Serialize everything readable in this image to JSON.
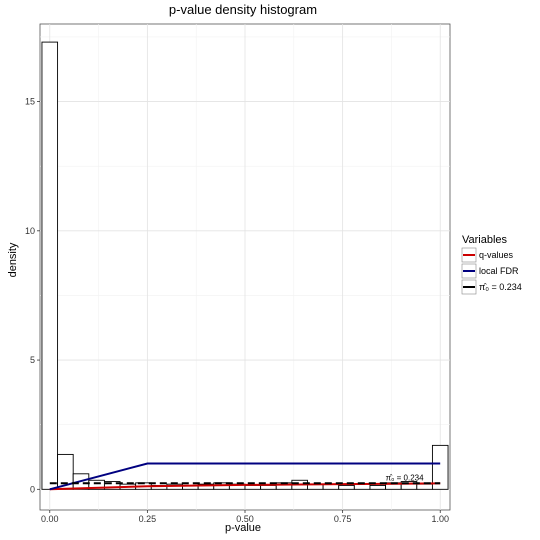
{
  "chart_data": {
    "type": "bar",
    "title": "p-value density histogram",
    "xlabel": "p-value",
    "ylabel": "density",
    "xlim": [
      -0.025,
      1.025
    ],
    "ylim": [
      -0.8,
      18.0
    ],
    "x_ticks": [
      0.0,
      0.25,
      0.5,
      0.75,
      1.0
    ],
    "x_tick_labels": [
      "0.00",
      "0.25",
      "0.50",
      "0.75",
      "1.00"
    ],
    "y_ticks": [
      0,
      5,
      10,
      15
    ],
    "y_tick_labels": [
      "0",
      "5",
      "10",
      "15"
    ],
    "grid": true,
    "legend_position": "right",
    "legend_title": "Variables",
    "histogram": {
      "bin_width": 0.04,
      "bin_starts": [
        -0.02,
        0.02,
        0.06,
        0.1,
        0.14,
        0.18,
        0.22,
        0.26,
        0.3,
        0.34,
        0.38,
        0.42,
        0.46,
        0.5,
        0.54,
        0.58,
        0.62,
        0.66,
        0.7,
        0.74,
        0.78,
        0.82,
        0.86,
        0.9,
        0.94,
        0.98
      ],
      "densities": [
        17.3,
        1.35,
        0.6,
        0.35,
        0.3,
        0.2,
        0.25,
        0.15,
        0.2,
        0.15,
        0.2,
        0.25,
        0.2,
        0.15,
        0.15,
        0.25,
        0.35,
        0.2,
        0.2,
        0.15,
        0.2,
        0.15,
        0.25,
        0.3,
        0.2,
        1.7
      ]
    },
    "series": [
      {
        "name": "q-values",
        "color": "#cc0000",
        "style": "solid",
        "x": [
          0.0,
          0.25,
          0.5,
          0.75,
          1.0
        ],
        "y": [
          0.0,
          0.12,
          0.17,
          0.2,
          0.23
        ]
      },
      {
        "name": "local FDR",
        "color": "#000080",
        "style": "solid",
        "x": [
          0.0,
          0.25,
          0.5,
          0.75,
          1.0
        ],
        "y": [
          0.0,
          1.0,
          1.0,
          1.0,
          1.0
        ]
      },
      {
        "name": "π̂₀ = 0.234",
        "color": "#000000",
        "style": "dashed",
        "x": [
          0.0,
          1.0
        ],
        "y": [
          0.234,
          0.234
        ]
      }
    ],
    "annotation": {
      "text": "π̂₀ = 0.234",
      "x": 0.86,
      "y": 0.234
    }
  }
}
